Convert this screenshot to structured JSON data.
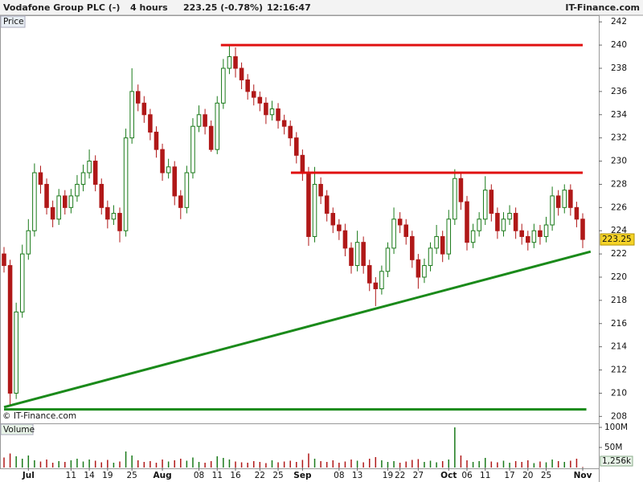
{
  "chart_data": {
    "type": "candlestick",
    "title": "Vodafone Group PLC (-)",
    "interval": "4 hours",
    "change": "223.25 (-0.78%)",
    "time": "12:16:47",
    "source": "IT-Finance.com",
    "axis_label": "Price",
    "copyright": "© IT-Finance.com",
    "up_color": "#1a7a1a",
    "down_color": "#b01818",
    "categories": [
      null,
      null,
      null,
      null,
      "Jul",
      null,
      null,
      null,
      null,
      null,
      null,
      "11",
      null,
      null,
      "14",
      null,
      null,
      "19",
      null,
      null,
      null,
      "25",
      null,
      null,
      null,
      null,
      "Aug",
      null,
      null,
      null,
      null,
      null,
      "08",
      null,
      null,
      "11",
      null,
      null,
      "16",
      null,
      null,
      null,
      "22",
      null,
      null,
      "25",
      null,
      null,
      null,
      "Sep",
      null,
      null,
      null,
      null,
      null,
      "08",
      null,
      null,
      "13",
      null,
      null,
      null,
      null,
      "19",
      null,
      "22",
      null,
      null,
      "27",
      null,
      null,
      null,
      null,
      "Oct",
      null,
      null,
      "06",
      null,
      null,
      "11",
      null,
      null,
      null,
      "17",
      null,
      null,
      "20",
      null,
      null,
      "25",
      null,
      null,
      null,
      null,
      null,
      "Nov"
    ],
    "open": [
      222,
      221,
      210,
      217,
      222,
      224,
      229,
      228,
      226,
      225,
      227,
      226,
      227,
      228,
      229,
      230,
      228,
      226,
      225,
      225.5,
      224,
      232,
      236,
      235,
      234,
      232.5,
      231,
      229,
      229.5,
      227,
      226,
      229,
      233,
      234,
      233,
      231,
      235,
      238,
      239,
      238,
      237,
      236,
      235.5,
      235,
      234,
      234.5,
      233.5,
      233,
      232,
      230.5,
      229,
      223.5,
      228,
      227,
      225.5,
      224.5,
      224,
      222.5,
      221,
      223,
      221,
      219.5,
      219,
      220.5,
      222.5,
      225,
      224.5,
      223.5,
      221.5,
      220,
      221,
      222.5,
      223.5,
      222,
      225,
      228.5,
      226.5,
      223,
      224,
      225,
      227.5,
      225.5,
      224,
      225,
      225.5,
      224,
      223.5,
      223,
      224,
      223.5,
      224.5,
      227,
      226,
      227.5,
      226,
      225
    ],
    "high": [
      222.6,
      221.5,
      217.8,
      222.8,
      225,
      229.8,
      229.6,
      228.5,
      226.6,
      227.6,
      227.5,
      227.6,
      228.8,
      229.7,
      231,
      230.5,
      228.5,
      226.6,
      226.2,
      226,
      232.8,
      238,
      236.6,
      235.6,
      234.5,
      233,
      231.5,
      230.2,
      230,
      227.5,
      229.6,
      233.7,
      234.8,
      234.5,
      233.5,
      235.6,
      238.8,
      240,
      239.8,
      238.5,
      237.5,
      236.6,
      236,
      235.5,
      235.2,
      235,
      234,
      233.5,
      232.5,
      231,
      229.5,
      229.5,
      228.6,
      227.5,
      226,
      225,
      224.6,
      223,
      224,
      223.5,
      221.5,
      220,
      221,
      223,
      226,
      225.6,
      225,
      224,
      222,
      221.6,
      223,
      224.5,
      224,
      225.8,
      229.3,
      229,
      227,
      224.6,
      225.6,
      228.7,
      228,
      226,
      225.6,
      226.2,
      226,
      224.6,
      224,
      224.6,
      224.5,
      225.2,
      227.8,
      227.5,
      228,
      228,
      226.5,
      225.5
    ],
    "low": [
      220.4,
      209,
      209.5,
      216.5,
      221.5,
      223.5,
      227.2,
      225.4,
      224.3,
      224.5,
      225.4,
      225.5,
      226.5,
      227.4,
      228.5,
      227.4,
      225.4,
      224.2,
      224.5,
      223,
      223.5,
      231.5,
      234.3,
      233.3,
      231.8,
      230.3,
      228.3,
      228.5,
      226.2,
      225,
      225.5,
      228.5,
      232.5,
      232.3,
      230.8,
      230.6,
      234.5,
      237.5,
      237.2,
      236.2,
      235.3,
      234.8,
      234.3,
      233.2,
      233.5,
      232.8,
      232.3,
      231.3,
      229.8,
      228.3,
      222.7,
      223,
      226.3,
      224.8,
      223.8,
      223.2,
      221.8,
      220.3,
      220.5,
      220.3,
      218.8,
      217.5,
      218.5,
      220,
      222,
      223.8,
      222.8,
      220.8,
      219,
      219.5,
      220.5,
      222,
      221.3,
      221.5,
      224.5,
      225.8,
      222.3,
      222.5,
      223.5,
      224.5,
      224.8,
      223.3,
      223.5,
      224.5,
      223.3,
      222.8,
      222.3,
      222.5,
      222.8,
      223,
      224,
      225.3,
      225.5,
      225.3,
      224.3,
      222.5
    ],
    "close": [
      221,
      210,
      217,
      222,
      224,
      229,
      228,
      226,
      225,
      227,
      226,
      227,
      228,
      229,
      230,
      228,
      226,
      225,
      225.5,
      224,
      232,
      236,
      235,
      234,
      232.5,
      231,
      229,
      229.5,
      227,
      226,
      229,
      233,
      234,
      233,
      231,
      235,
      238,
      239,
      238,
      237,
      236,
      235.5,
      235,
      234,
      234.5,
      233.5,
      233,
      232,
      230.5,
      229,
      223.5,
      228,
      227,
      225.5,
      224.5,
      224,
      222.5,
      221,
      223,
      221,
      219.5,
      219,
      220.5,
      222.5,
      225,
      224.5,
      223.5,
      221.5,
      220,
      221,
      222.5,
      223.5,
      222,
      225,
      228.5,
      226.5,
      223,
      224,
      225,
      227.5,
      225.5,
      224,
      225,
      225.5,
      224,
      223.5,
      223,
      224,
      223.5,
      224.5,
      227,
      226,
      227.5,
      226,
      225,
      223.25
    ],
    "ylim": [
      207.4,
      242.5
    ],
    "yticks": [
      208,
      210,
      212,
      214,
      216,
      218,
      220,
      222,
      224,
      226,
      228,
      230,
      232,
      234,
      236,
      238,
      240,
      242
    ],
    "last_color": "#f5d328",
    "trendlines": [
      {
        "color": "#e01010",
        "start": [
          35.6,
          240
        ],
        "end": [
          95,
          240
        ]
      },
      {
        "color": "#e01010",
        "start": [
          47.1,
          229
        ],
        "end": [
          95,
          229
        ]
      },
      {
        "color": "#1a8a1a",
        "start": [
          0,
          208.8
        ],
        "end": [
          96.3,
          222.2
        ]
      },
      {
        "color": "#1a8a1a",
        "start": [
          0,
          208.6
        ],
        "end": [
          95.6,
          208.6
        ]
      }
    ],
    "volume": {
      "label": "Volume",
      "values": [
        25000000.0,
        35000000.0,
        28000000.0,
        22000000.0,
        30000000.0,
        18000000.0,
        15000000.0,
        20000000.0,
        12000000.0,
        16000000.0,
        14000000.0,
        18000000.0,
        22000000.0,
        15000000.0,
        20000000.0,
        17000000.0,
        13000000.0,
        19000000.0,
        12000000.0,
        15000000.0,
        40000000.0,
        30000000.0,
        18000000.0,
        14000000.0,
        16000000.0,
        12000000.0,
        20000000.0,
        15000000.0,
        18000000.0,
        22000000.0,
        17000000.0,
        25000000.0,
        14000000.0,
        12000000.0,
        16000000.0,
        28000000.0,
        24000000.0,
        20000000.0,
        15000000.0,
        13000000.0,
        12000000.0,
        16000000.0,
        14000000.0,
        11000000.0,
        18000000.0,
        13000000.0,
        15000000.0,
        17000000.0,
        14000000.0,
        19000000.0,
        35000000.0,
        22000000.0,
        16000000.0,
        14000000.0,
        18000000.0,
        12000000.0,
        15000000.0,
        20000000.0,
        17000000.0,
        13000000.0,
        22000000.0,
        26000000.0,
        18000000.0,
        14000000.0,
        16000000.0,
        12000000.0,
        15000000.0,
        19000000.0,
        21000000.0,
        14000000.0,
        17000000.0,
        13000000.0,
        16000000.0,
        20000000.0,
        100000000.0,
        30000000.0,
        18000000.0,
        14000000.0,
        16000000.0,
        24000000.0,
        15000000.0,
        13000000.0,
        17000000.0,
        12000000.0,
        16000000.0,
        14000000.0,
        18000000.0,
        11000000.0,
        15000000.0,
        13000000.0,
        20000000.0,
        16000000.0,
        14000000.0,
        17000000.0,
        22000000.0,
        1256000
      ],
      "last_label": "1,256k",
      "ylim": [
        0,
        108000000
      ],
      "yticks": [
        {
          "value": 50000000,
          "label": "50M"
        },
        {
          "value": 100000000,
          "label": "100M"
        }
      ]
    }
  }
}
